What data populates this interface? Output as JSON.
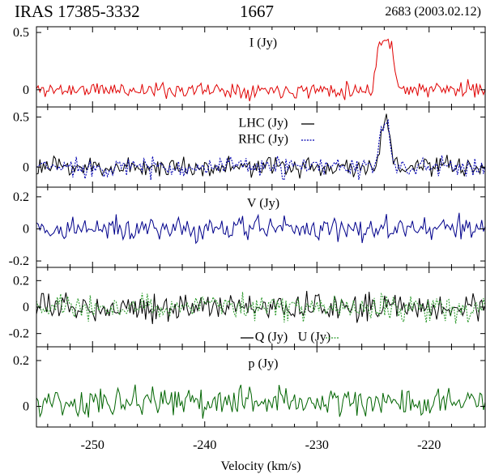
{
  "header": {
    "source": "IRAS 17385-3332",
    "frequency": "1667",
    "observation": "2683 (2003.02.12)"
  },
  "colors": {
    "I": "#e00000",
    "LHC": "#000000",
    "RHC": "#0000b0",
    "V": "#00008b",
    "Q": "#000000",
    "U": "#2e9b2e",
    "p": "#006400"
  },
  "chart_data": {
    "type": "line",
    "xlabel": "Velocity (km/s)",
    "xlim": [
      -255,
      -215
    ],
    "xticks": [
      -250,
      -240,
      -230,
      -220
    ],
    "tick_labels": [
      "-250",
      "-240",
      "-230",
      "-220"
    ],
    "panels": [
      {
        "id": "I",
        "ylim": [
          -0.15,
          0.55
        ],
        "yticks": [
          0,
          0.5
        ],
        "ytick_labels": [
          "0",
          "0.5"
        ],
        "series": [
          {
            "name": "I (Jy)",
            "color_key": "I",
            "dashed": false,
            "noise": 0.05,
            "seed": 11,
            "feature": {
              "type": "box",
              "lo": -224.6,
              "hi": -223.2,
              "amp": 0.41
            }
          }
        ]
      },
      {
        "id": "LR",
        "ylim": [
          -0.2,
          0.6
        ],
        "yticks": [
          0,
          0.5
        ],
        "ytick_labels": [
          "0",
          "0.5"
        ],
        "series": [
          {
            "name": "LHC (Jy)",
            "color_key": "LHC",
            "dashed": false,
            "noise": 0.07,
            "seed": 23,
            "feature": {
              "type": "gauss",
              "center": -223.9,
              "width": 0.55,
              "amp": 0.47
            }
          },
          {
            "name": "RHC (Jy)",
            "color_key": "RHC",
            "dashed": true,
            "noise": 0.07,
            "seed": 37,
            "feature": {
              "type": "gauss",
              "center": -223.9,
              "width": 0.6,
              "amp": 0.43
            }
          }
        ]
      },
      {
        "id": "V",
        "ylim": [
          -0.24,
          0.26
        ],
        "yticks": [
          -0.2,
          0,
          0.2
        ],
        "ytick_labels": [
          "-0.2",
          "0",
          "0.2"
        ],
        "series": [
          {
            "name": "V (Jy)",
            "color_key": "V",
            "dashed": false,
            "noise": 0.055,
            "seed": 41,
            "feature": null
          }
        ]
      },
      {
        "id": "QU",
        "ylim": [
          -0.3,
          0.3
        ],
        "yticks": [
          -0.2,
          0,
          0.2
        ],
        "ytick_labels": [
          "-0.2",
          "0",
          "0.2"
        ],
        "series": [
          {
            "name": "Q (Jy)",
            "color_key": "Q",
            "dashed": false,
            "noise": 0.07,
            "seed": 53,
            "feature": null
          },
          {
            "name": "U (Jy)",
            "color_key": "U",
            "dashed": true,
            "noise": 0.07,
            "seed": 67,
            "feature": null
          }
        ]
      },
      {
        "id": "p",
        "ylim": [
          -0.09,
          0.26
        ],
        "yticks": [
          0,
          0.2
        ],
        "ytick_labels": [
          "0",
          "0.2"
        ],
        "series": [
          {
            "name": "p (Jy)",
            "color_key": "p",
            "dashed": false,
            "noise": 0.045,
            "seed": 79,
            "offset": 0.02,
            "feature": null
          }
        ]
      }
    ]
  }
}
